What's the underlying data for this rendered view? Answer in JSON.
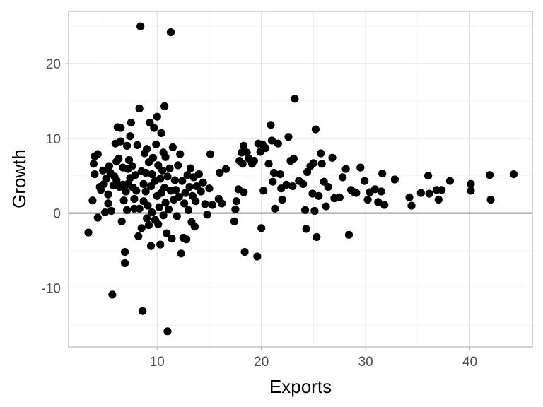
{
  "chart_data": {
    "type": "scatter",
    "title": "",
    "xlabel": "Exports",
    "ylabel": "Growth",
    "xlim": [
      1.5,
      46
    ],
    "ylim": [
      -17.9,
      27
    ],
    "x_ticks": [
      10,
      20,
      30,
      40
    ],
    "y_ticks": [
      -10,
      0,
      10,
      20
    ],
    "grid": true,
    "reference_line": {
      "y": 0,
      "color": "#888888"
    },
    "point_color": "#000000",
    "points": [
      [
        3.4,
        -2.6
      ],
      [
        3.8,
        1.7
      ],
      [
        3.9,
        6.6
      ],
      [
        4.0,
        7.6
      ],
      [
        4.0,
        5.2
      ],
      [
        4.3,
        7.9
      ],
      [
        4.3,
        -0.6
      ],
      [
        4.5,
        3.5
      ],
      [
        4.6,
        3.1
      ],
      [
        4.8,
        5.7
      ],
      [
        4.9,
        3.9
      ],
      [
        5.0,
        0.1
      ],
      [
        5.1,
        4.6
      ],
      [
        5.3,
        2.5
      ],
      [
        5.3,
        1.3
      ],
      [
        5.4,
        6.3
      ],
      [
        5.5,
        5.4
      ],
      [
        5.6,
        0.3
      ],
      [
        5.7,
        -10.9
      ],
      [
        5.8,
        3.7
      ],
      [
        5.9,
        4.9
      ],
      [
        6.0,
        9.3
      ],
      [
        6.1,
        6.9
      ],
      [
        6.1,
        4.4
      ],
      [
        6.2,
        11.5
      ],
      [
        6.3,
        7.3
      ],
      [
        6.4,
        3.5
      ],
      [
        6.5,
        9.6
      ],
      [
        6.5,
        11.4
      ],
      [
        6.6,
        -1.1
      ],
      [
        6.7,
        3.8
      ],
      [
        6.7,
        6.1
      ],
      [
        6.8,
        1.7
      ],
      [
        6.9,
        -6.7
      ],
      [
        6.9,
        -5.2
      ],
      [
        7.0,
        2.9
      ],
      [
        7.1,
        9.0
      ],
      [
        7.1,
        0.4
      ],
      [
        7.2,
        3.9
      ],
      [
        7.2,
        5.9
      ],
      [
        7.3,
        7.1
      ],
      [
        7.4,
        4.7
      ],
      [
        7.4,
        10.3
      ],
      [
        7.5,
        12.1
      ],
      [
        7.6,
        6.3
      ],
      [
        7.7,
        3.4
      ],
      [
        7.8,
        1.9
      ],
      [
        7.8,
        0.6
      ],
      [
        7.9,
        5.1
      ],
      [
        8.0,
        3.0
      ],
      [
        8.1,
        9.1
      ],
      [
        8.2,
        -3.1
      ],
      [
        8.3,
        0.6
      ],
      [
        8.3,
        14.0
      ],
      [
        8.4,
        25.0
      ],
      [
        8.5,
        5.6
      ],
      [
        8.5,
        -2.0
      ],
      [
        8.6,
        -13.1
      ],
      [
        8.7,
        3.9
      ],
      [
        8.7,
        1.6
      ],
      [
        8.8,
        8.0
      ],
      [
        8.9,
        5.4
      ],
      [
        8.9,
        2.9
      ],
      [
        9.0,
        -0.7
      ],
      [
        9.0,
        8.6
      ],
      [
        9.1,
        1.0
      ],
      [
        9.2,
        6.8
      ],
      [
        9.2,
        -1.6
      ],
      [
        9.3,
        12.1
      ],
      [
        9.4,
        -4.4
      ],
      [
        9.4,
        3.6
      ],
      [
        9.5,
        0.1
      ],
      [
        9.5,
        5.2
      ],
      [
        9.6,
        7.4
      ],
      [
        9.7,
        11.4
      ],
      [
        9.8,
        4.3
      ],
      [
        9.8,
        -0.9
      ],
      [
        9.9,
        9.2
      ],
      [
        10.0,
        2.3
      ],
      [
        10.0,
        12.9
      ],
      [
        10.1,
        6.4
      ],
      [
        10.1,
        -1.5
      ],
      [
        10.2,
        0.8
      ],
      [
        10.3,
        4.6
      ],
      [
        10.3,
        -4.2
      ],
      [
        10.4,
        10.7
      ],
      [
        10.4,
        2.7
      ],
      [
        10.5,
        5.7
      ],
      [
        10.6,
        8.1
      ],
      [
        10.6,
        -0.3
      ],
      [
        10.7,
        3.4
      ],
      [
        10.7,
        14.3
      ],
      [
        10.8,
        1.4
      ],
      [
        10.8,
        7.5
      ],
      [
        10.9,
        -2.7
      ],
      [
        11.0,
        -15.8
      ],
      [
        11.0,
        4.9
      ],
      [
        11.1,
        0.5
      ],
      [
        11.2,
        6.0
      ],
      [
        11.3,
        24.2
      ],
      [
        11.3,
        3.0
      ],
      [
        11.4,
        -3.4
      ],
      [
        11.5,
        8.8
      ],
      [
        11.6,
        1.8
      ],
      [
        11.7,
        4.4
      ],
      [
        11.8,
        3.1
      ],
      [
        11.9,
        -0.4
      ],
      [
        12.0,
        6.4
      ],
      [
        12.1,
        2.2
      ],
      [
        12.2,
        7.9
      ],
      [
        12.3,
        -5.4
      ],
      [
        12.4,
        4.3
      ],
      [
        12.5,
        -3.3
      ],
      [
        12.6,
        1.3
      ],
      [
        12.7,
        2.7
      ],
      [
        12.8,
        -3.5
      ],
      [
        12.9,
        5.1
      ],
      [
        13.0,
        0.4
      ],
      [
        13.1,
        3.5
      ],
      [
        13.2,
        6.0
      ],
      [
        13.3,
        -1.2
      ],
      [
        13.4,
        2.3
      ],
      [
        13.5,
        4.8
      ],
      [
        13.6,
        -1.8
      ],
      [
        13.7,
        1.6
      ],
      [
        13.8,
        3.6
      ],
      [
        14.0,
        5.2
      ],
      [
        14.2,
        2.9
      ],
      [
        14.4,
        4.1
      ],
      [
        14.6,
        1.2
      ],
      [
        14.8,
        -0.2
      ],
      [
        15.0,
        3.3
      ],
      [
        15.1,
        7.9
      ],
      [
        15.3,
        1.1
      ],
      [
        15.9,
        1.9
      ],
      [
        16.0,
        5.4
      ],
      [
        16.2,
        1.3
      ],
      [
        16.6,
        5.9
      ],
      [
        17.4,
        -1.1
      ],
      [
        17.5,
        0.5
      ],
      [
        17.6,
        1.6
      ],
      [
        17.8,
        3.2
      ],
      [
        17.9,
        7.0
      ],
      [
        18.1,
        8.1
      ],
      [
        18.2,
        6.6
      ],
      [
        18.3,
        2.8
      ],
      [
        18.3,
        9.0
      ],
      [
        18.4,
        -5.2
      ],
      [
        18.6,
        8.1
      ],
      [
        18.8,
        7.3
      ],
      [
        19.1,
        6.6
      ],
      [
        19.3,
        7.0
      ],
      [
        19.6,
        -5.8
      ],
      [
        19.7,
        9.3
      ],
      [
        19.9,
        8.2
      ],
      [
        20.0,
        -2.0
      ],
      [
        20.1,
        9.2
      ],
      [
        20.2,
        3.0
      ],
      [
        20.4,
        8.7
      ],
      [
        20.7,
        6.6
      ],
      [
        20.9,
        11.8
      ],
      [
        21.0,
        9.7
      ],
      [
        21.1,
        4.2
      ],
      [
        21.2,
        5.4
      ],
      [
        21.3,
        0.6
      ],
      [
        21.6,
        9.3
      ],
      [
        21.8,
        5.2
      ],
      [
        21.9,
        3.3
      ],
      [
        22.0,
        1.8
      ],
      [
        22.4,
        3.8
      ],
      [
        22.6,
        10.2
      ],
      [
        22.8,
        7.0
      ],
      [
        23.0,
        3.6
      ],
      [
        23.1,
        7.3
      ],
      [
        23.2,
        15.3
      ],
      [
        23.6,
        4.3
      ],
      [
        24.0,
        3.9
      ],
      [
        24.2,
        0.4
      ],
      [
        24.3,
        -2.1
      ],
      [
        24.4,
        5.5
      ],
      [
        24.7,
        6.3
      ],
      [
        24.9,
        2.6
      ],
      [
        25.0,
        6.7
      ],
      [
        25.1,
        0.3
      ],
      [
        25.2,
        11.2
      ],
      [
        25.3,
        -3.2
      ],
      [
        25.5,
        2.3
      ],
      [
        25.7,
        8.0
      ],
      [
        25.8,
        6.6
      ],
      [
        26.0,
        4.2
      ],
      [
        26.2,
        0.9
      ],
      [
        26.4,
        3.5
      ],
      [
        26.8,
        7.4
      ],
      [
        27.0,
        2.0
      ],
      [
        27.5,
        2.1
      ],
      [
        27.8,
        4.8
      ],
      [
        28.1,
        5.9
      ],
      [
        28.4,
        -2.9
      ],
      [
        28.6,
        3.1
      ],
      [
        28.9,
        2.8
      ],
      [
        29.1,
        2.7
      ],
      [
        29.5,
        6.1
      ],
      [
        29.9,
        4.3
      ],
      [
        30.2,
        1.8
      ],
      [
        30.4,
        2.8
      ],
      [
        30.9,
        3.2
      ],
      [
        31.2,
        1.5
      ],
      [
        31.5,
        2.9
      ],
      [
        31.6,
        5.3
      ],
      [
        31.8,
        1.1
      ],
      [
        32.8,
        4.5
      ],
      [
        34.2,
        2.1
      ],
      [
        34.4,
        1.0
      ],
      [
        35.3,
        2.7
      ],
      [
        36.0,
        5.0
      ],
      [
        36.1,
        2.6
      ],
      [
        36.8,
        3.1
      ],
      [
        37.0,
        1.8
      ],
      [
        37.3,
        3.1
      ],
      [
        38.1,
        4.3
      ],
      [
        40.1,
        3.9
      ],
      [
        40.1,
        3.0
      ],
      [
        41.9,
        5.1
      ],
      [
        42.0,
        1.8
      ],
      [
        44.2,
        5.2
      ]
    ]
  }
}
